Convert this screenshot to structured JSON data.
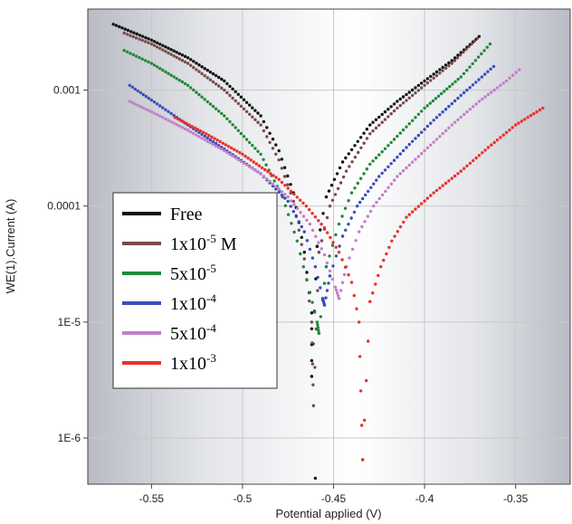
{
  "chart_data": {
    "type": "scatter",
    "title": "",
    "xlabel": "Potential applied (V)",
    "ylabel": "WE(1).Current (A)",
    "xlim": [
      -0.585,
      -0.32
    ],
    "ylim": [
      4e-07,
      0.005
    ],
    "y_scale": "log",
    "x_ticks": [
      -0.55,
      -0.5,
      -0.45,
      -0.4,
      -0.35
    ],
    "x_tick_labels": [
      "-0.55",
      "-0.5",
      "-0.45",
      "-0.4",
      "-0.35"
    ],
    "y_ticks": [
      1e-06,
      1e-05,
      0.0001,
      0.001
    ],
    "y_tick_labels": [
      "1E-6",
      "1E-5",
      "0.0001",
      "0.001"
    ],
    "grid": true,
    "legend_position": "left-middle",
    "series": [
      {
        "name": "Free",
        "color": "#111111",
        "ecorr": -0.462,
        "y_ecorr": 3.4e-06,
        "y_min": 4.5e-07,
        "y_min_x": -0.46,
        "cathodic": [
          [
            -0.571,
            0.0037
          ],
          [
            -0.55,
            0.0027
          ],
          [
            -0.53,
            0.0019
          ],
          [
            -0.51,
            0.0012
          ],
          [
            -0.49,
            0.0006
          ],
          [
            -0.48,
            0.0003
          ],
          [
            -0.472,
            0.00013
          ],
          [
            -0.466,
            4e-05
          ],
          [
            -0.462,
            1.2e-05
          ]
        ],
        "anodic": [
          [
            -0.459,
            4.5e-05
          ],
          [
            -0.454,
            0.00012
          ],
          [
            -0.445,
            0.00024
          ],
          [
            -0.43,
            0.0005
          ],
          [
            -0.415,
            0.0008
          ],
          [
            -0.4,
            0.0012
          ],
          [
            -0.385,
            0.0018
          ],
          [
            -0.37,
            0.0029
          ]
        ]
      },
      {
        "name": "1x10-5 M",
        "legend_base": "1x10",
        "legend_exp": "-5",
        "legend_suffix": " M",
        "color": "#7a4a4a",
        "ecorr": -0.461,
        "y_ecorr": 1.9e-06,
        "cathodic": [
          [
            -0.565,
            0.0031
          ],
          [
            -0.55,
            0.0025
          ],
          [
            -0.53,
            0.0017
          ],
          [
            -0.51,
            0.001
          ],
          [
            -0.49,
            0.0005
          ],
          [
            -0.48,
            0.00025
          ],
          [
            -0.472,
            0.00011
          ],
          [
            -0.466,
            3.5e-05
          ],
          [
            -0.462,
            1e-05
          ]
        ],
        "anodic": [
          [
            -0.458,
            4e-05
          ],
          [
            -0.452,
            0.0001
          ],
          [
            -0.443,
            0.0002
          ],
          [
            -0.43,
            0.00042
          ],
          [
            -0.415,
            0.0007
          ],
          [
            -0.4,
            0.0011
          ],
          [
            -0.385,
            0.0017
          ],
          [
            -0.371,
            0.0028
          ]
        ]
      },
      {
        "name": "5x10-5",
        "legend_base": "5x10",
        "legend_exp": "-5",
        "legend_suffix": "",
        "color": "#1f8a3a",
        "ecorr": -0.458,
        "y_ecorr": 8e-06,
        "cathodic": [
          [
            -0.565,
            0.0022
          ],
          [
            -0.55,
            0.0017
          ],
          [
            -0.53,
            0.0011
          ],
          [
            -0.51,
            0.0006
          ],
          [
            -0.49,
            0.00028
          ],
          [
            -0.478,
            0.00012
          ],
          [
            -0.47,
            5e-05
          ],
          [
            -0.463,
            1.8e-05
          ],
          [
            -0.459,
            1e-05
          ]
        ],
        "anodic": [
          [
            -0.454,
            3e-05
          ],
          [
            -0.447,
            7e-05
          ],
          [
            -0.44,
            0.00013
          ],
          [
            -0.43,
            0.00023
          ],
          [
            -0.415,
            0.0004
          ],
          [
            -0.4,
            0.0007
          ],
          [
            -0.38,
            0.0013
          ],
          [
            -0.364,
            0.0025
          ]
        ]
      },
      {
        "name": "1x10-4",
        "legend_base": "1x10",
        "legend_exp": "-4",
        "legend_suffix": "",
        "color": "#3a4fb8",
        "ecorr": -0.455,
        "y_ecorr": 1.4e-05,
        "cathodic": [
          [
            -0.562,
            0.0011
          ],
          [
            -0.55,
            0.00082
          ],
          [
            -0.53,
            0.0005
          ],
          [
            -0.51,
            0.00031
          ],
          [
            -0.49,
            0.00019
          ],
          [
            -0.475,
            0.00011
          ],
          [
            -0.466,
            6e-05
          ],
          [
            -0.46,
            3e-05
          ],
          [
            -0.456,
            1.6e-05
          ]
        ],
        "anodic": [
          [
            -0.452,
            2.5e-05
          ],
          [
            -0.445,
            5.5e-05
          ],
          [
            -0.437,
            0.0001
          ],
          [
            -0.425,
            0.00018
          ],
          [
            -0.41,
            0.00032
          ],
          [
            -0.395,
            0.00055
          ],
          [
            -0.38,
            0.0009
          ],
          [
            -0.362,
            0.0016
          ]
        ]
      },
      {
        "name": "5x10-4",
        "legend_base": "5x10",
        "legend_exp": "-4",
        "legend_suffix": "",
        "color": "#c37fc9",
        "ecorr": -0.447,
        "y_ecorr": 1.6e-05,
        "cathodic": [
          [
            -0.562,
            0.0008
          ],
          [
            -0.55,
            0.00065
          ],
          [
            -0.53,
            0.00045
          ],
          [
            -0.51,
            0.0003
          ],
          [
            -0.49,
            0.00019
          ],
          [
            -0.475,
            0.00012
          ],
          [
            -0.463,
            7e-05
          ],
          [
            -0.455,
            3.8e-05
          ],
          [
            -0.449,
            2e-05
          ]
        ],
        "anodic": [
          [
            -0.443,
            3e-05
          ],
          [
            -0.436,
            6e-05
          ],
          [
            -0.428,
            0.0001
          ],
          [
            -0.415,
            0.00018
          ],
          [
            -0.4,
            0.0003
          ],
          [
            -0.385,
            0.0005
          ],
          [
            -0.37,
            0.0008
          ],
          [
            -0.355,
            0.0012
          ],
          [
            -0.348,
            0.0015
          ]
        ]
      },
      {
        "name": "1x10-3",
        "legend_base": "1x10",
        "legend_exp": "-3",
        "legend_suffix": "",
        "color": "#e8332a",
        "ecorr": -0.434,
        "y_ecorr": 6.5e-07,
        "cathodic": [
          [
            -0.537,
            0.00058
          ],
          [
            -0.52,
            0.00042
          ],
          [
            -0.5,
            0.00028
          ],
          [
            -0.48,
            0.00017
          ],
          [
            -0.465,
            0.0001
          ],
          [
            -0.455,
            6.5e-05
          ],
          [
            -0.447,
            4e-05
          ],
          [
            -0.44,
            2.2e-05
          ],
          [
            -0.436,
            1e-05
          ]
        ],
        "anodic": [
          [
            -0.43,
            1.5e-05
          ],
          [
            -0.424,
            3e-05
          ],
          [
            -0.418,
            5e-05
          ],
          [
            -0.41,
            8e-05
          ],
          [
            -0.395,
            0.00013
          ],
          [
            -0.38,
            0.0002
          ],
          [
            -0.365,
            0.00032
          ],
          [
            -0.35,
            0.0005
          ],
          [
            -0.335,
            0.0007
          ]
        ]
      }
    ]
  }
}
